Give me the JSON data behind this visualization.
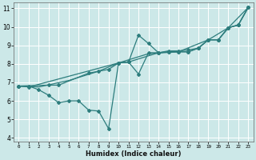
{
  "title": "",
  "xlabel": "Humidex (Indice chaleur)",
  "ylabel": "",
  "bg_color": "#cce8e8",
  "line_color": "#2d7d7d",
  "grid_color": "#ffffff",
  "xlim": [
    -0.5,
    23.5
  ],
  "ylim": [
    3.8,
    11.3
  ],
  "xticks": [
    0,
    1,
    2,
    3,
    4,
    5,
    6,
    7,
    8,
    9,
    10,
    11,
    12,
    13,
    14,
    15,
    16,
    17,
    18,
    19,
    20,
    21,
    22,
    23
  ],
  "yticks": [
    4,
    5,
    6,
    7,
    8,
    9,
    10,
    11
  ],
  "series1": [
    [
      0,
      6.8
    ],
    [
      1,
      6.8
    ],
    [
      2,
      6.6
    ],
    [
      3,
      6.3
    ],
    [
      4,
      5.9
    ],
    [
      5,
      6.0
    ],
    [
      6,
      6.0
    ],
    [
      7,
      5.5
    ],
    [
      8,
      5.45
    ],
    [
      9,
      4.5
    ],
    [
      10,
      8.05
    ],
    [
      11,
      8.1
    ],
    [
      12,
      9.55
    ],
    [
      13,
      9.1
    ],
    [
      14,
      8.6
    ],
    [
      15,
      8.7
    ],
    [
      16,
      8.7
    ],
    [
      17,
      8.75
    ],
    [
      18,
      8.85
    ],
    [
      19,
      9.3
    ],
    [
      20,
      9.3
    ],
    [
      21,
      9.95
    ],
    [
      22,
      10.1
    ],
    [
      23,
      11.05
    ]
  ],
  "series2": [
    [
      0,
      6.8
    ],
    [
      1,
      6.75
    ],
    [
      10,
      8.05
    ],
    [
      11,
      8.1
    ],
    [
      12,
      7.45
    ],
    [
      13,
      8.6
    ],
    [
      14,
      8.6
    ],
    [
      15,
      8.65
    ],
    [
      16,
      8.65
    ],
    [
      17,
      8.65
    ],
    [
      18,
      8.85
    ],
    [
      19,
      9.3
    ],
    [
      20,
      9.3
    ],
    [
      21,
      9.95
    ],
    [
      22,
      10.1
    ],
    [
      23,
      11.05
    ]
  ],
  "series3": [
    [
      0,
      6.8
    ],
    [
      3,
      6.85
    ],
    [
      4,
      6.85
    ],
    [
      7,
      7.5
    ],
    [
      8,
      7.6
    ],
    [
      9,
      7.7
    ],
    [
      10,
      8.05
    ],
    [
      11,
      8.1
    ],
    [
      14,
      8.6
    ],
    [
      15,
      8.65
    ],
    [
      16,
      8.65
    ],
    [
      17,
      8.65
    ],
    [
      18,
      8.85
    ],
    [
      19,
      9.3
    ],
    [
      20,
      9.3
    ],
    [
      21,
      9.95
    ],
    [
      22,
      10.1
    ],
    [
      23,
      11.05
    ]
  ],
  "series4": [
    [
      0,
      6.8
    ],
    [
      2,
      6.75
    ],
    [
      5,
      7.1
    ],
    [
      8,
      7.6
    ],
    [
      10,
      8.05
    ],
    [
      13,
      8.55
    ],
    [
      16,
      8.65
    ],
    [
      19,
      9.3
    ],
    [
      21,
      9.95
    ],
    [
      23,
      11.05
    ]
  ]
}
